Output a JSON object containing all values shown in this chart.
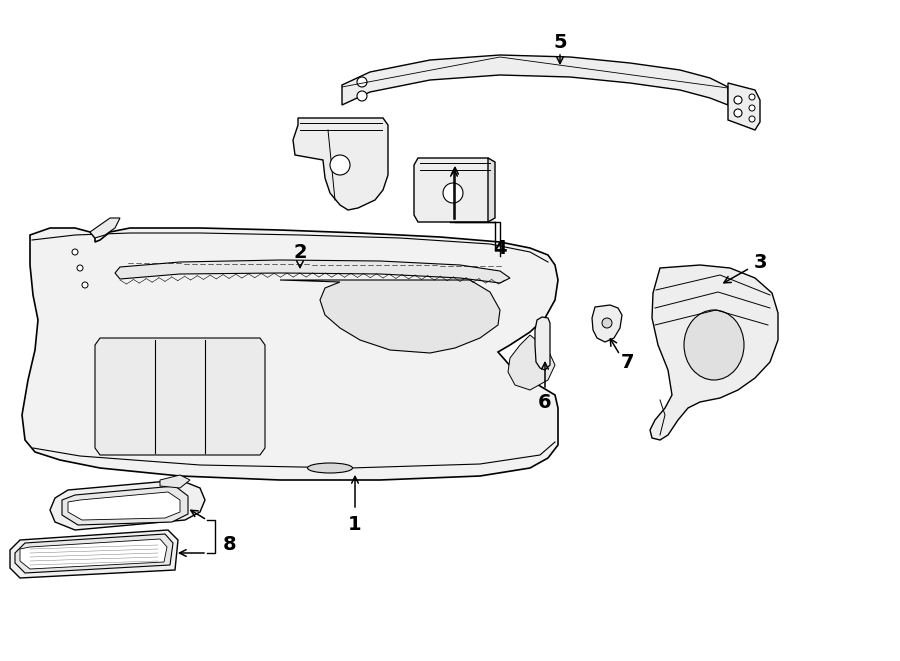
{
  "background_color": "#ffffff",
  "line_color": "#000000",
  "fig_width": 9.0,
  "fig_height": 6.61,
  "components": {
    "bumper_color": "#f5f5f5",
    "part_color": "#eeeeee"
  }
}
